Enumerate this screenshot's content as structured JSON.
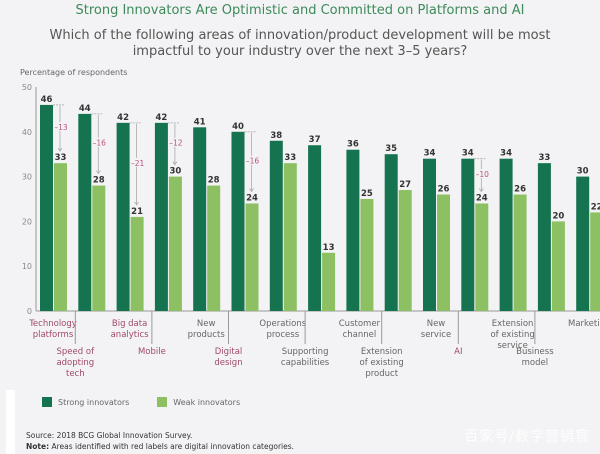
{
  "title": "Strong Innovators Are Optimistic and Committed on Platforms and AI",
  "subtitle": "Which of the following areas of innovation/product development will be most impactful to your industry over the next 3–5 years?",
  "colors": {
    "strong": "#16734f",
    "weak": "#8cc063",
    "digital_label": "#a04a68",
    "normal_label": "#666666",
    "gap_label": "#b8557a",
    "title": "#3d8a5a"
  },
  "legend": {
    "strong_label": "Strong innovators",
    "weak_label": "Weak innovators"
  },
  "footnote": {
    "source": "Source: 2018 BCG Global Innovation Survey.",
    "note_prefix": "Note:",
    "note_text": " Areas identified with red labels are digital innovation categories."
  },
  "watermark": "百家号/数字营销官",
  "chart_data": {
    "type": "bar",
    "title": "Strong Innovators Are Optimistic and Committed on Platforms and AI",
    "subtitle": "Which of the following areas of innovation/product development will be most impactful to your industry over the next 3–5 years?",
    "xlabel": "",
    "ylabel": "Percentage of respondents",
    "ylim": [
      0,
      50
    ],
    "yticks": [
      0,
      10,
      20,
      30,
      40,
      50
    ],
    "grid": false,
    "legend_position": "bottom-left",
    "categories": [
      {
        "label": [
          "Technology",
          "platforms"
        ],
        "digital": true
      },
      {
        "label": [
          "Speed of",
          "adopting",
          "tech"
        ],
        "digital": true
      },
      {
        "label": [
          "Big data",
          "analytics"
        ],
        "digital": true
      },
      {
        "label": [
          "Mobile"
        ],
        "digital": true
      },
      {
        "label": [
          "New",
          "products"
        ],
        "digital": false
      },
      {
        "label": [
          "Digital",
          "design"
        ],
        "digital": true
      },
      {
        "label": [
          "Operations",
          "process"
        ],
        "digital": false
      },
      {
        "label": [
          "Supporting",
          "capabilities"
        ],
        "digital": false
      },
      {
        "label": [
          "Customer",
          "channel"
        ],
        "digital": false
      },
      {
        "label": [
          "Extension",
          "of existing",
          "product"
        ],
        "digital": false
      },
      {
        "label": [
          "New",
          "service"
        ],
        "digital": false
      },
      {
        "label": [
          "AI"
        ],
        "digital": true
      },
      {
        "label": [
          "Extension",
          "of existing",
          "service"
        ],
        "digital": false
      },
      {
        "label": [
          "Business",
          "model"
        ],
        "digital": false
      },
      {
        "label": [
          "Marketing"
        ],
        "digital": false
      }
    ],
    "series": [
      {
        "name": "Strong innovators",
        "values": [
          46,
          44,
          42,
          42,
          41,
          40,
          38,
          37,
          36,
          35,
          34,
          34,
          34,
          33,
          30
        ]
      },
      {
        "name": "Weak innovators",
        "values": [
          33,
          28,
          21,
          30,
          28,
          24,
          33,
          13,
          25,
          27,
          26,
          24,
          26,
          20,
          22
        ]
      }
    ],
    "gap_annotations": [
      {
        "category_index": 0,
        "label": "–13"
      },
      {
        "category_index": 1,
        "label": "–16"
      },
      {
        "category_index": 2,
        "label": "–21"
      },
      {
        "category_index": 3,
        "label": "–12"
      },
      {
        "category_index": 5,
        "label": "–16"
      },
      {
        "category_index": 11,
        "label": "–10"
      }
    ]
  }
}
